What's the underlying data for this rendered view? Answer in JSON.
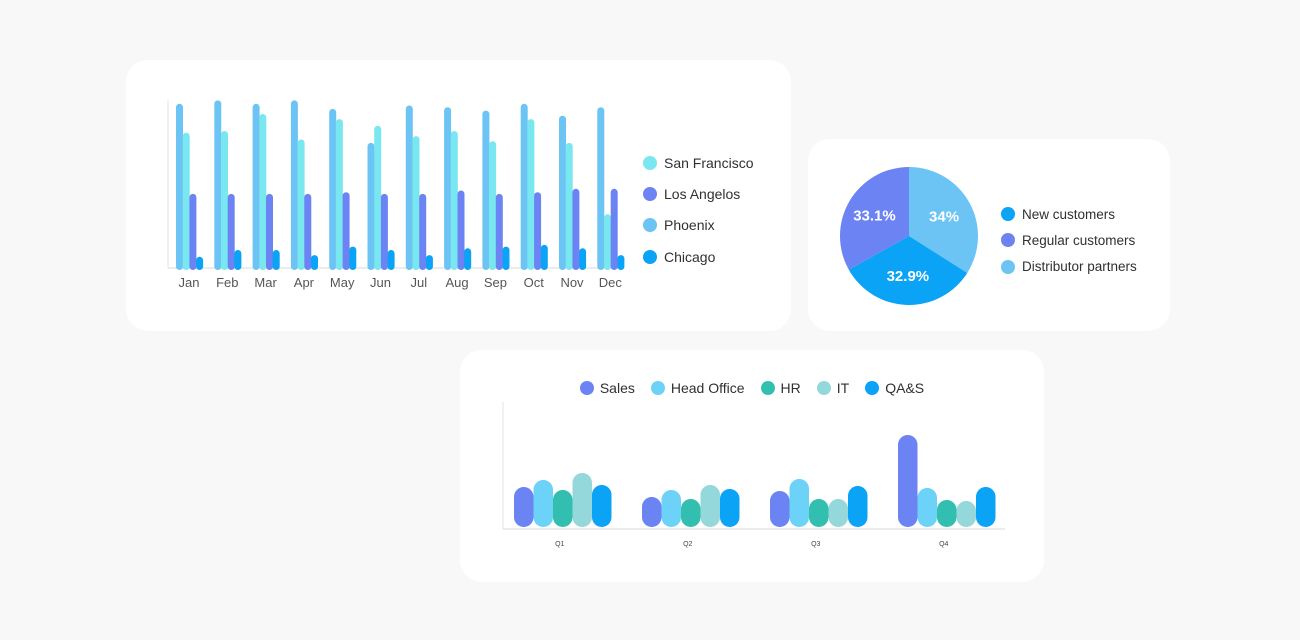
{
  "monthly_chart": {
    "legend": [
      {
        "label": "San Francisco",
        "color": "#79e7ef"
      },
      {
        "label": "Los Angelos",
        "color": "#6c83f3"
      },
      {
        "label": "Phoenix",
        "color": "#6cc4f4"
      },
      {
        "label": "Chicago",
        "color": "#0aa3f5"
      }
    ]
  },
  "customer_pie": {
    "legend": [
      {
        "label": "New customers",
        "color": "#0aa3f5"
      },
      {
        "label": "Regular customers",
        "color": "#6c83f3"
      },
      {
        "label": "Distributor partners",
        "color": "#6cc4f4"
      }
    ]
  },
  "quarterly_chart": {
    "legend": [
      {
        "label": "Sales",
        "color": "#6c83f3"
      },
      {
        "label": "Head Office",
        "color": "#6cd2f7"
      },
      {
        "label": "HR",
        "color": "#33bfb0"
      },
      {
        "label": "IT",
        "color": "#94d8dc"
      },
      {
        "label": "QA&S",
        "color": "#0aa3f5"
      }
    ]
  },
  "chart_data": [
    {
      "type": "bar",
      "categories": [
        "Jan",
        "Feb",
        "Mar",
        "Apr",
        "May",
        "Jun",
        "Jul",
        "Aug",
        "Sep",
        "Oct",
        "Nov",
        "Dec"
      ],
      "series": [
        {
          "name": "Phoenix",
          "color": "#6cc4f4",
          "values": [
            96,
            98,
            96,
            98,
            93,
            73,
            95,
            94,
            92,
            96,
            89,
            94
          ]
        },
        {
          "name": "San Francisco",
          "color": "#79e7ef",
          "values": [
            79,
            80,
            90,
            75,
            87,
            83,
            77,
            80,
            74,
            87,
            73,
            31
          ]
        },
        {
          "name": "Los Angelos",
          "color": "#6c83f3",
          "values": [
            43,
            43,
            43,
            43,
            44,
            43,
            43,
            45,
            43,
            44,
            46,
            46
          ]
        },
        {
          "name": "Chicago",
          "color": "#0aa3f5",
          "values": [
            6,
            10,
            10,
            7,
            12,
            10,
            7,
            11,
            12,
            13,
            11,
            7
          ]
        }
      ],
      "ylim": [
        0,
        105
      ]
    },
    {
      "type": "pie",
      "categories": [
        "New customers",
        "Regular customers",
        "Distributor partners"
      ],
      "values": [
        32.9,
        33.1,
        34
      ],
      "labels": [
        "32.9%",
        "33.1%",
        "34%"
      ]
    },
    {
      "type": "bar",
      "categories": [
        "Q1",
        "Q2",
        "Q3",
        "Q4"
      ],
      "series": [
        {
          "name": "Sales",
          "color": "#6c83f3",
          "values": [
            40,
            30,
            36,
            92
          ]
        },
        {
          "name": "Head Office",
          "color": "#6cd2f7",
          "values": [
            47,
            37,
            48,
            39
          ]
        },
        {
          "name": "HR",
          "color": "#33bfb0",
          "values": [
            37,
            28,
            28,
            27
          ]
        },
        {
          "name": "IT",
          "color": "#94d8dc",
          "values": [
            54,
            42,
            28,
            26
          ]
        },
        {
          "name": "QA&S",
          "color": "#0aa3f5",
          "values": [
            42,
            38,
            41,
            40
          ]
        }
      ],
      "ylim": [
        0,
        100
      ]
    }
  ]
}
